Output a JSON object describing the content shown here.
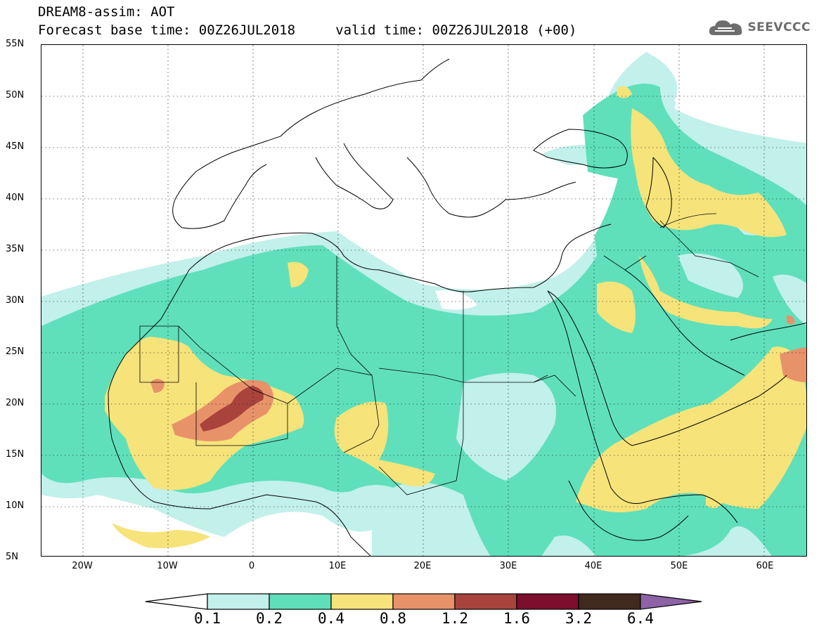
{
  "header": {
    "title_line1": "DREAM8-assim: AOT",
    "title_line2": "Forecast base time: 00Z26JUL2018     valid time: 00Z26JUL2018 (+00)"
  },
  "logo": {
    "text": "SEEVCCC",
    "icon": "cloud-icon"
  },
  "map": {
    "lon_range": [
      -25,
      65
    ],
    "lat_range": [
      5,
      55
    ],
    "lat_labels": [
      "55N",
      "50N",
      "45N",
      "40N",
      "35N",
      "30N",
      "25N",
      "20N",
      "15N",
      "10N",
      "5N"
    ],
    "lon_labels": [
      "20W",
      "10W",
      "0",
      "10E",
      "20E",
      "30E",
      "40E",
      "50E",
      "60E"
    ],
    "gridlines": "dotted"
  },
  "colorbar": {
    "levels": [
      "0.1",
      "0.2",
      "0.4",
      "0.8",
      "1.2",
      "1.6",
      "3.2",
      "6.4"
    ],
    "colors": [
      "#ffffff",
      "#c2f0ea",
      "#5fe0bb",
      "#f6e37a",
      "#e8926a",
      "#a8443c",
      "#7b0f2d",
      "#3f2a1d",
      "#8d63a6"
    ]
  }
}
